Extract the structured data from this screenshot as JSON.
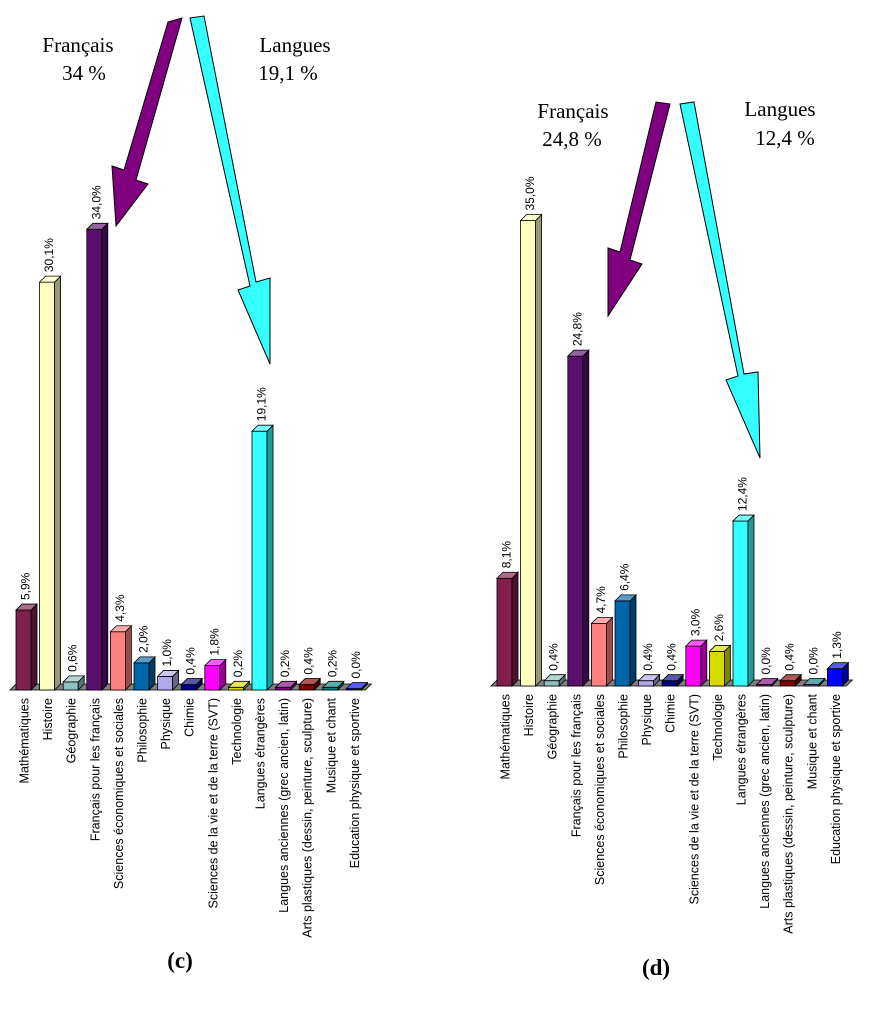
{
  "chart_data": [
    {
      "type": "bar",
      "panel_label": "(c)",
      "categories": [
        "Mathématiques",
        "Histoire",
        "Géographie",
        "Français pour les français",
        "Sciences économiques et sociales",
        "Philosophie",
        "Physique",
        "Chimie",
        "Sciences de la vie et de la terre (SVT)",
        "Technologie",
        "Langues étrangères",
        "Langues anciennes (grec ancien, latin)",
        "Arts plastiques (dessin, peinture, sculpture)",
        "Musique et chant",
        "Education physique et sportive"
      ],
      "values": [
        5.9,
        30.1,
        0.6,
        34.0,
        4.3,
        2.0,
        1.0,
        0.4,
        1.8,
        0.2,
        19.1,
        0.2,
        0.4,
        0.2,
        0.0
      ],
      "value_labels": [
        "5,9%",
        "30,1%",
        "0,6%",
        "34,0%",
        "4,3%",
        "2,0%",
        "1,0%",
        "0,4%",
        "1,8%",
        "0,2%",
        "19,1%",
        "0,2%",
        "0,4%",
        "0,2%",
        "0,0%"
      ],
      "colors": [
        "#7f1f4e",
        "#ffffc0",
        "#8fbfbf",
        "#5a0f6e",
        "#ff8080",
        "#0066aa",
        "#b0a8e8",
        "#000080",
        "#ff00ff",
        "#d9d900",
        "#33ffff",
        "#800080",
        "#800000",
        "#007f7f",
        "#0000ff"
      ],
      "annotations": [
        {
          "name": "Français",
          "value": "34 %",
          "color": "#800080"
        },
        {
          "name": "Langues",
          "value": "19,1 %",
          "color": "#33ffff"
        }
      ],
      "grid": false
    },
    {
      "type": "bar",
      "panel_label": "(d)",
      "categories": [
        "Mathématiques",
        "Histoire",
        "Géographie",
        "Français pour les français",
        "Sciences économiques et sociales",
        "Philosophie",
        "Physique",
        "Chimie",
        "Sciences de la vie et de la terre (SVT)",
        "Technologie",
        "Langues étrangères",
        "Langues anciennes (grec ancien, latin)",
        "Arts plastiques (dessin, peinture, sculpture)",
        "Musique et chant",
        "Education physique et sportive"
      ],
      "values": [
        8.1,
        35.0,
        0.4,
        24.8,
        4.7,
        6.4,
        0.4,
        0.4,
        3.0,
        2.6,
        12.4,
        0.0,
        0.4,
        0.0,
        1.3
      ],
      "value_labels": [
        "8,1%",
        "35,0%",
        "0,4%",
        "24,8%",
        "4,7%",
        "6,4%",
        "0,4%",
        "0,4%",
        "3,0%",
        "2,6%",
        "12,4%",
        "0,0%",
        "0,4%",
        "0,0%",
        "1,3%"
      ],
      "colors": [
        "#7f1f4e",
        "#ffffc0",
        "#8fbfbf",
        "#5a0f6e",
        "#ff8080",
        "#0066aa",
        "#b0a8e8",
        "#000080",
        "#ff00ff",
        "#d9d900",
        "#33ffff",
        "#800080",
        "#800000",
        "#007f7f",
        "#0000ff"
      ],
      "annotations": [
        {
          "name": "Français",
          "value": "24,8 %",
          "color": "#800080"
        },
        {
          "name": "Langues",
          "value": "12,4 %",
          "color": "#33ffff"
        }
      ],
      "grid": false
    }
  ]
}
